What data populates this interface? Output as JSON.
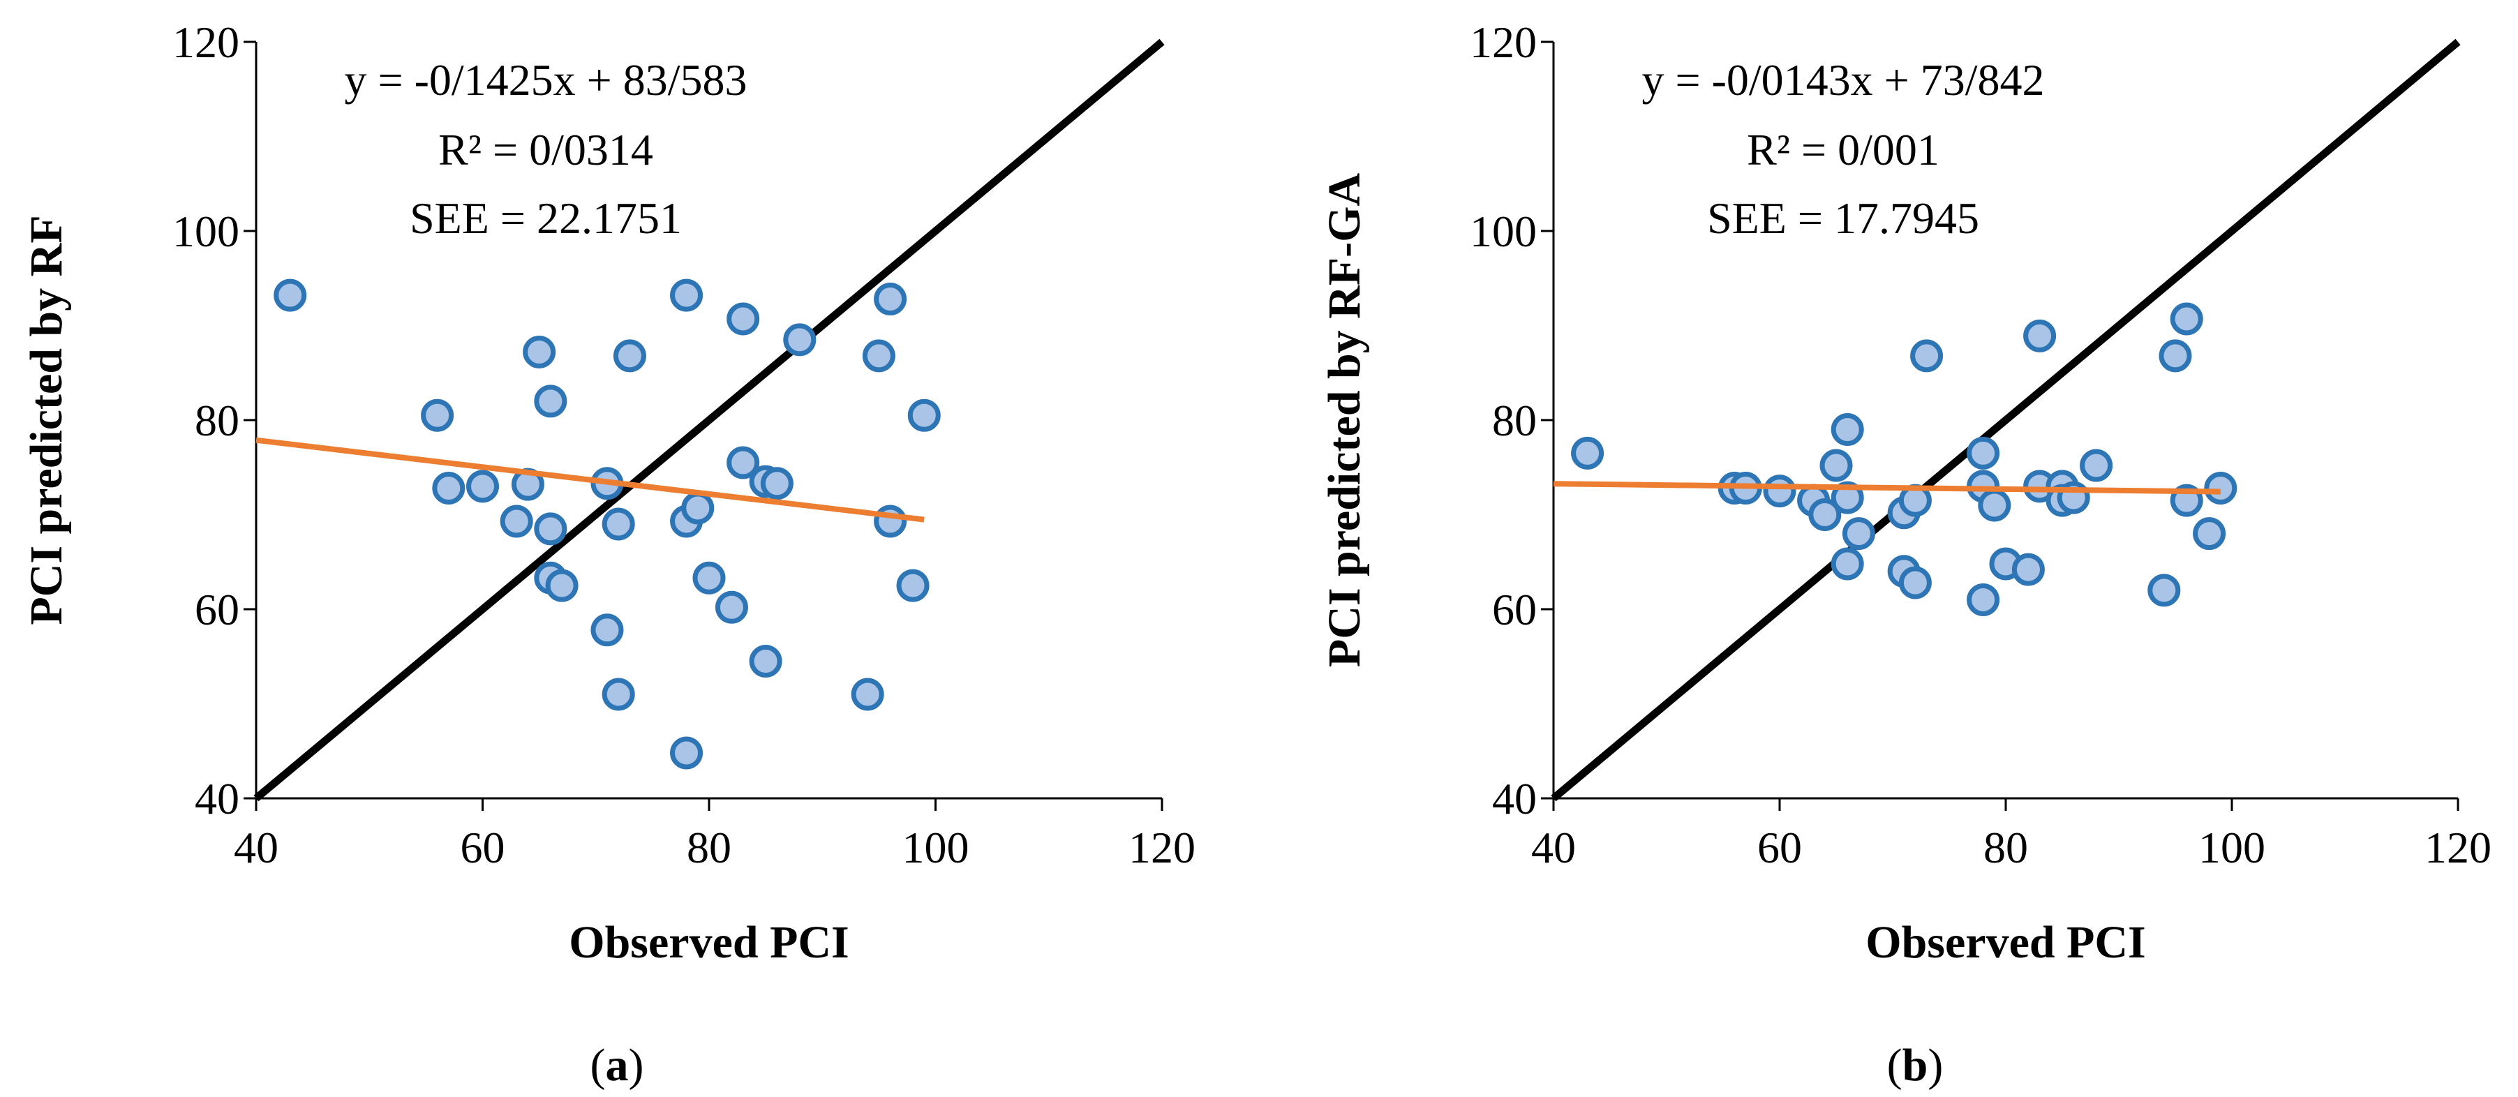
{
  "colors": {
    "point_fill": "#a9c4e6",
    "point_stroke": "#2e75b6",
    "trend_line": "#ed7d31",
    "identity_line": "#000000",
    "axis": "#000000"
  },
  "chart_data": [
    {
      "type": "scatter",
      "caption_letter": "a",
      "caption_open": "(",
      "caption_close": ")",
      "xlabel": "Observed PCI",
      "ylabel": "PCI predicted by RF",
      "xlim": [
        40,
        120
      ],
      "ylim": [
        40,
        120
      ],
      "xticks": [
        40,
        60,
        80,
        100,
        120
      ],
      "yticks": [
        40,
        60,
        80,
        100,
        120
      ],
      "tick_labels": [
        "40",
        "60",
        "80",
        "100",
        "120"
      ],
      "equation": "y = -0/1425x + 83/583",
      "r_squared": "R² = 0/0314",
      "see": "SEE = 22.1751",
      "identity_line": [
        [
          40,
          40
        ],
        [
          120,
          120
        ]
      ],
      "trend_line": {
        "x_start": 40,
        "x_end": 99,
        "slope": -0.1425,
        "intercept": 83.583
      },
      "points": [
        [
          43,
          93.2
        ],
        [
          56,
          80.5
        ],
        [
          57,
          72.8
        ],
        [
          60,
          73
        ],
        [
          63,
          69.3
        ],
        [
          64,
          73.2
        ],
        [
          65,
          87.2
        ],
        [
          66,
          82
        ],
        [
          66,
          68.5
        ],
        [
          66,
          63.3
        ],
        [
          67,
          62.5
        ],
        [
          71,
          73.3
        ],
        [
          71,
          57.8
        ],
        [
          72,
          69
        ],
        [
          72,
          51
        ],
        [
          73,
          86.8
        ],
        [
          78,
          93.2
        ],
        [
          78,
          69.3
        ],
        [
          79,
          70.7
        ],
        [
          78,
          44.8
        ],
        [
          80,
          63.3
        ],
        [
          82,
          60.2
        ],
        [
          83,
          90.7
        ],
        [
          83,
          75.5
        ],
        [
          85,
          73.5
        ],
        [
          86,
          73.3
        ],
        [
          85,
          54.5
        ],
        [
          88,
          88.5
        ],
        [
          94,
          51
        ],
        [
          95,
          86.8
        ],
        [
          96,
          92.8
        ],
        [
          96,
          69.3
        ],
        [
          98,
          62.5
        ],
        [
          99,
          80.5
        ]
      ]
    },
    {
      "type": "scatter",
      "caption_letter": "b",
      "caption_open": "(",
      "caption_close": ")",
      "xlabel": "Observed PCI",
      "ylabel": "PCI predicted by RF-GA",
      "xlim": [
        40,
        120
      ],
      "ylim": [
        40,
        120
      ],
      "xticks": [
        40,
        60,
        80,
        100,
        120
      ],
      "yticks": [
        40,
        60,
        80,
        100,
        120
      ],
      "tick_labels": [
        "40",
        "60",
        "80",
        "100",
        "120"
      ],
      "equation": "y = -0/0143x + 73/842",
      "r_squared": "R² = 0/001",
      "see": "SEE = 17.7945",
      "identity_line": [
        [
          40,
          40
        ],
        [
          120,
          120
        ]
      ],
      "trend_line": {
        "x_start": 40,
        "x_end": 99,
        "slope": -0.0143,
        "intercept": 73.842
      },
      "points": [
        [
          43,
          76.5
        ],
        [
          56,
          72.8
        ],
        [
          57,
          72.8
        ],
        [
          60,
          72.5
        ],
        [
          63,
          71.5
        ],
        [
          64,
          70
        ],
        [
          65,
          75.2
        ],
        [
          66,
          79
        ],
        [
          66,
          71.8
        ],
        [
          66,
          64.8
        ],
        [
          67,
          68
        ],
        [
          71,
          70.2
        ],
        [
          71,
          64
        ],
        [
          72,
          71.5
        ],
        [
          72,
          62.8
        ],
        [
          73,
          86.8
        ],
        [
          78,
          76.5
        ],
        [
          78,
          73
        ],
        [
          79,
          71
        ],
        [
          78,
          61
        ],
        [
          80,
          64.8
        ],
        [
          82,
          64.2
        ],
        [
          83,
          88.9
        ],
        [
          83,
          73
        ],
        [
          85,
          73
        ],
        [
          85,
          71.5
        ],
        [
          86,
          71.8
        ],
        [
          88,
          75.2
        ],
        [
          94,
          62
        ],
        [
          95,
          86.8
        ],
        [
          96,
          90.7
        ],
        [
          96,
          71.5
        ],
        [
          98,
          68
        ],
        [
          99,
          72.8
        ]
      ]
    }
  ]
}
